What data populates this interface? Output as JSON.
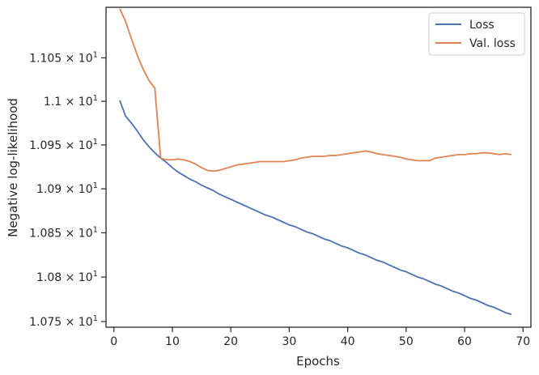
{
  "chart_data": {
    "type": "line",
    "xlabel": "Epochs",
    "ylabel": "Negative log-likelihood",
    "xlim": [
      -1.35,
      71.35
    ],
    "ylim": [
      10.7436,
      11.1085
    ],
    "xticks": [
      0,
      10,
      20,
      30,
      40,
      50,
      60,
      70
    ],
    "xtick_labels": [
      "0",
      "10",
      "20",
      "30",
      "40",
      "50",
      "60",
      "70"
    ],
    "yticks": [
      10.75,
      10.8,
      10.85,
      10.9,
      10.95,
      11.0,
      11.05
    ],
    "ytick_mantissas": [
      "1.075",
      "1.08",
      "1.085",
      "1.09",
      "1.095",
      "1.1",
      "1.105"
    ],
    "ytick_base": "× 10",
    "ytick_exponent": "1",
    "yscale": "log",
    "grid": false,
    "legend_position": "top-right",
    "colors": {
      "loss": "#4c72b0",
      "val_loss": "#dd8452",
      "axes": "#262626"
    },
    "series": [
      {
        "name": "Loss",
        "color": "#4c72b0",
        "x": [
          1,
          2,
          3,
          4,
          5,
          6,
          7,
          8,
          9,
          10,
          11,
          12,
          13,
          14,
          15,
          16,
          17,
          18,
          19,
          20,
          21,
          22,
          23,
          24,
          25,
          26,
          27,
          28,
          29,
          30,
          31,
          32,
          33,
          34,
          35,
          36,
          37,
          38,
          39,
          40,
          41,
          42,
          43,
          44,
          45,
          46,
          47,
          48,
          49,
          50,
          51,
          52,
          53,
          54,
          55,
          56,
          57,
          58,
          59,
          60,
          61,
          62,
          63,
          64,
          65,
          66,
          67,
          68
        ],
        "values": [
          11.001,
          10.983,
          10.975,
          10.966,
          10.956,
          10.948,
          10.941,
          10.935,
          10.93,
          10.924,
          10.919,
          10.915,
          10.911,
          10.908,
          10.904,
          10.901,
          10.898,
          10.894,
          10.891,
          10.888,
          10.885,
          10.882,
          10.879,
          10.876,
          10.873,
          10.87,
          10.868,
          10.865,
          10.862,
          10.859,
          10.857,
          10.854,
          10.851,
          10.849,
          10.846,
          10.843,
          10.841,
          10.838,
          10.835,
          10.833,
          10.83,
          10.827,
          10.825,
          10.822,
          10.819,
          10.817,
          10.814,
          10.811,
          10.808,
          10.806,
          10.803,
          10.8,
          10.798,
          10.795,
          10.792,
          10.79,
          10.787,
          10.784,
          10.782,
          10.779,
          10.776,
          10.774,
          10.771,
          10.768,
          10.766,
          10.763,
          10.76,
          10.758
        ]
      },
      {
        "name": "Val. loss",
        "color": "#dd8452",
        "x": [
          1,
          2,
          3,
          4,
          5,
          6,
          7,
          8,
          9,
          10,
          11,
          12,
          13,
          14,
          15,
          16,
          17,
          18,
          19,
          20,
          21,
          22,
          23,
          24,
          25,
          26,
          27,
          28,
          29,
          30,
          31,
          32,
          33,
          34,
          35,
          36,
          37,
          38,
          39,
          40,
          41,
          42,
          43,
          44,
          45,
          46,
          47,
          48,
          49,
          50,
          51,
          52,
          53,
          54,
          55,
          56,
          57,
          58,
          59,
          60,
          61,
          62,
          63,
          64,
          65,
          66,
          67,
          68
        ],
        "values": [
          11.107,
          11.092,
          11.072,
          11.053,
          11.037,
          11.024,
          11.015,
          10.935,
          10.933,
          10.933,
          10.934,
          10.933,
          10.931,
          10.928,
          10.924,
          10.921,
          10.92,
          10.921,
          10.923,
          10.925,
          10.927,
          10.928,
          10.929,
          10.93,
          10.931,
          10.931,
          10.931,
          10.931,
          10.931,
          10.932,
          10.933,
          10.935,
          10.936,
          10.937,
          10.937,
          10.937,
          10.938,
          10.938,
          10.939,
          10.94,
          10.941,
          10.942,
          10.943,
          10.942,
          10.94,
          10.939,
          10.938,
          10.937,
          10.936,
          10.934,
          10.933,
          10.932,
          10.932,
          10.932,
          10.935,
          10.936,
          10.937,
          10.938,
          10.939,
          10.939,
          10.94,
          10.94,
          10.941,
          10.941,
          10.94,
          10.939,
          10.94,
          10.939
        ]
      }
    ]
  }
}
